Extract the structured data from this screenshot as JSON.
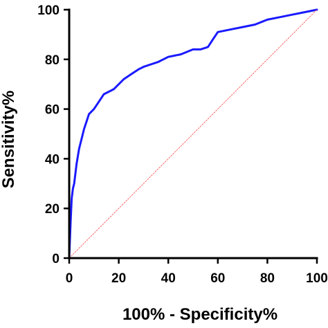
{
  "chart_data": {
    "type": "line",
    "xlabel": "100% - Specificity%",
    "ylabel": "Sensitivity%",
    "xlim": [
      0,
      100
    ],
    "ylim": [
      0,
      100
    ],
    "x_ticks": [
      0,
      20,
      40,
      60,
      80,
      100
    ],
    "y_ticks": [
      0,
      20,
      40,
      60,
      80,
      100
    ],
    "x_tick_labels": [
      "0",
      "20",
      "40",
      "60",
      "80",
      "100"
    ],
    "y_tick_labels": [
      "0",
      "20",
      "40",
      "60",
      "80",
      "100"
    ],
    "grid": false,
    "legend": "none",
    "series": [
      {
        "style": "solid",
        "color": "#1a1aff",
        "x": [
          0,
          0.3,
          0.6,
          1,
          1.5,
          2,
          3,
          4,
          5,
          6,
          7,
          8,
          9,
          10,
          12,
          14,
          16,
          18,
          20,
          22,
          25,
          28,
          30,
          33,
          36,
          38,
          40,
          45,
          50,
          53,
          56,
          58,
          60,
          65,
          70,
          75,
          80,
          85,
          90,
          95,
          100
        ],
        "y": [
          0,
          8,
          15,
          24,
          28,
          30,
          38,
          44,
          48,
          52,
          55,
          58,
          59,
          60,
          63,
          66,
          67,
          68,
          70,
          72,
          74,
          76,
          77,
          78,
          79,
          80,
          81,
          82,
          84,
          84,
          85,
          88,
          91,
          92,
          93,
          94,
          96,
          97,
          98,
          99,
          100
        ]
      },
      {
        "style": "dotted",
        "color": "#ff6b6b",
        "x": [
          0,
          100
        ],
        "y": [
          0,
          100
        ]
      }
    ]
  }
}
